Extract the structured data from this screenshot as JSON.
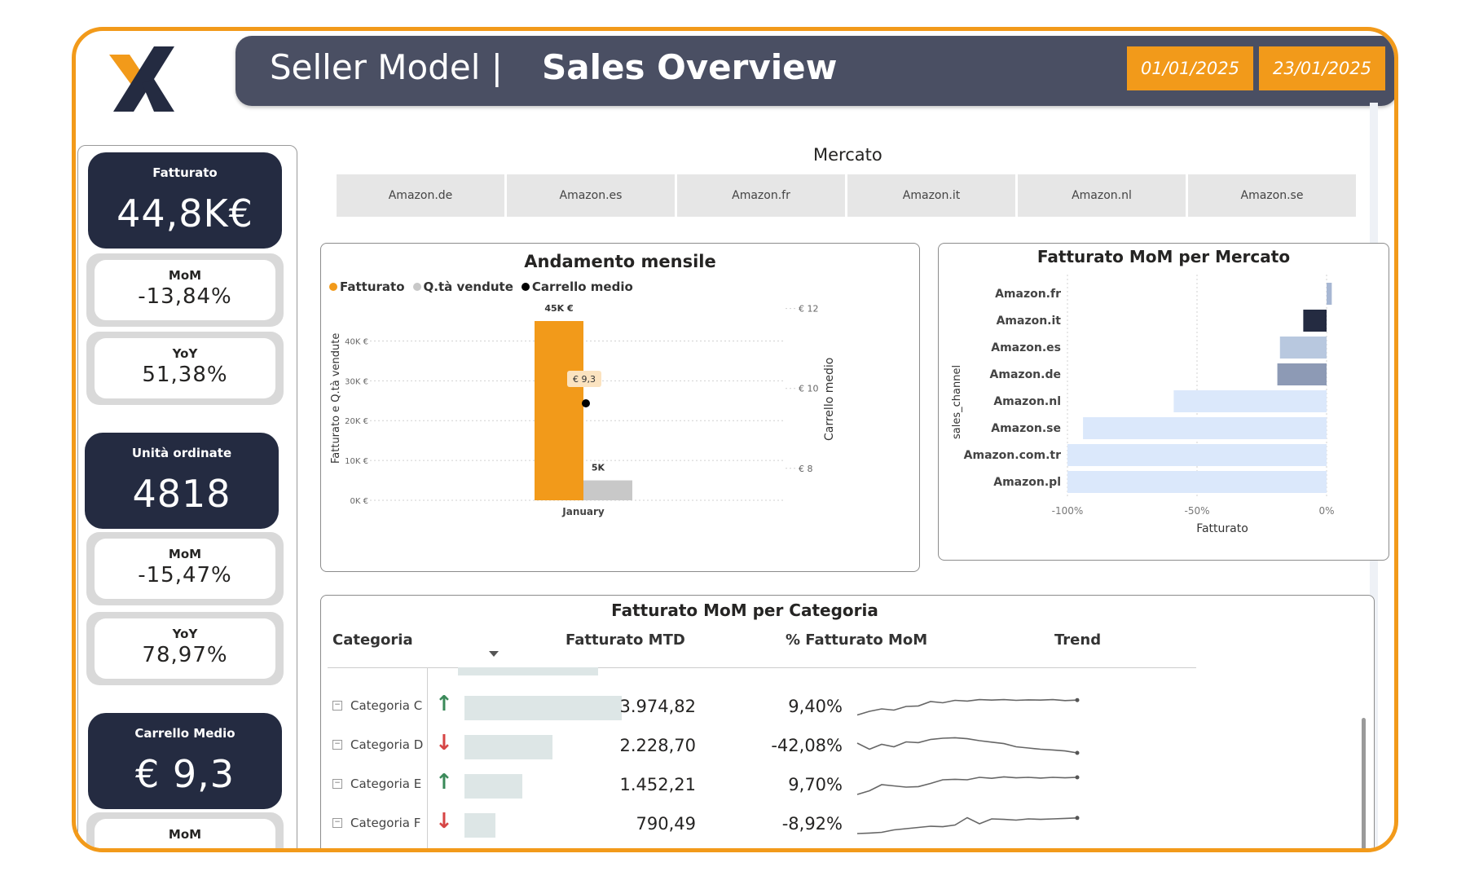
{
  "header": {
    "title_prefix": "Seller Model |",
    "title_main": "Sales Overview",
    "date_start": "01/01/2025",
    "date_end": "23/01/2025"
  },
  "colors": {
    "accent": "#F29A1A",
    "header_bg": "#4A4F63",
    "kpi_dark": "#242B41"
  },
  "kpis": [
    {
      "label": "Fatturato",
      "value": "44,8K€",
      "mom_label": "MoM",
      "mom": "-13,84%",
      "yoy_label": "YoY",
      "yoy": "51,38%"
    },
    {
      "label": "Unità ordinate",
      "value": "4818",
      "mom_label": "MoM",
      "mom": "-15,47%",
      "yoy_label": "YoY",
      "yoy": "78,97%"
    },
    {
      "label": "Carrello Medio",
      "value": "€ 9,3",
      "mom_label": "MoM"
    }
  ],
  "mercato": {
    "title": "Mercato",
    "options": [
      "Amazon.de",
      "Amazon.es",
      "Amazon.fr",
      "Amazon.it",
      "Amazon.nl",
      "Amazon.se"
    ]
  },
  "monthly_chart": {
    "title": "Andamento mensile",
    "legend": [
      "Fatturato",
      "Q.tà vendute",
      "Carrello medio"
    ],
    "legend_colors": [
      "#F29A1A",
      "#c8c8c8",
      "#000000"
    ]
  },
  "mom_chart": {
    "title": "Fatturato MoM per Mercato"
  },
  "table": {
    "title": "Fatturato MoM per Categoria",
    "headers": [
      "Categoria",
      "Fatturato MTD",
      "% Fatturato MoM",
      "Trend"
    ],
    "rows": [
      {
        "cat": "Categoria C",
        "dir": "up",
        "mtd": "3.974,82",
        "mom": "9,40%",
        "bar": 0.41,
        "trend": [
          0.25,
          0.4,
          0.5,
          0.45,
          0.6,
          0.62,
          0.8,
          0.75,
          0.85,
          0.82,
          0.88,
          0.86,
          0.88,
          0.85,
          0.87,
          0.86,
          0.88,
          0.84,
          0.86
        ]
      },
      {
        "cat": "Categoria D",
        "dir": "down",
        "mtd": "2.228,70",
        "mom": "-42,08%",
        "bar": 0.23,
        "trend": [
          0.7,
          0.45,
          0.65,
          0.55,
          0.75,
          0.72,
          0.85,
          0.9,
          0.92,
          0.88,
          0.8,
          0.74,
          0.68,
          0.55,
          0.5,
          0.45,
          0.42,
          0.38,
          0.3
        ]
      },
      {
        "cat": "Categoria E",
        "dir": "up",
        "mtd": "1.452,21",
        "mom": "9,70%",
        "bar": 0.15,
        "trend": [
          0.2,
          0.35,
          0.6,
          0.55,
          0.5,
          0.52,
          0.65,
          0.8,
          0.82,
          0.8,
          0.9,
          0.86,
          0.92,
          0.88,
          0.9,
          0.87,
          0.9,
          0.88,
          0.9
        ]
      },
      {
        "cat": "Categoria F",
        "dir": "down",
        "mtd": "790,49",
        "mom": "-8,92%",
        "bar": 0.08,
        "trend": [
          0.2,
          0.22,
          0.25,
          0.35,
          0.4,
          0.45,
          0.5,
          0.48,
          0.55,
          0.85,
          0.6,
          0.8,
          0.78,
          0.75,
          0.8,
          0.78,
          0.8,
          0.82,
          0.84
        ]
      }
    ]
  },
  "chart_data": [
    {
      "type": "bar",
      "title": "Andamento mensile",
      "categories": [
        "January"
      ],
      "series": [
        {
          "name": "Fatturato",
          "values": [
            45000
          ],
          "label": "45K €"
        },
        {
          "name": "Q.tà vendute",
          "values": [
            5000
          ],
          "label": "5K"
        },
        {
          "name": "Carrello medio",
          "values": [
            9.3
          ],
          "label": "€ 9,3",
          "axis": "right"
        }
      ],
      "ylabel": "Fatturato e Q.tà vendute",
      "ylabel_right": "Carrello medio",
      "y_ticks": [
        "0K €",
        "10K €",
        "20K €",
        "30K €",
        "40K €"
      ],
      "ylim": [
        0,
        45000
      ],
      "y2_ticks": [
        "€ 8",
        "€ 10",
        "€ 12"
      ],
      "y2lim": [
        7.2,
        12.4
      ],
      "grid": true,
      "legend": "top-left"
    },
    {
      "type": "bar",
      "title": "Fatturato MoM per Mercato",
      "orientation": "horizontal",
      "categories": [
        "Amazon.fr",
        "Amazon.it",
        "Amazon.es",
        "Amazon.de",
        "Amazon.nl",
        "Amazon.se",
        "Amazon.com.tr",
        "Amazon.pl"
      ],
      "values": [
        0.02,
        -0.09,
        -0.18,
        -0.19,
        -0.59,
        -0.94,
        -1.0,
        -1.0
      ],
      "colors": [
        "#a7b7d3",
        "#242B41",
        "#b8c8df",
        "#8d9ab5",
        "#dbe8fb",
        "#dbe8fb",
        "#dbe8fb",
        "#dbe8fb"
      ],
      "xlabel": "Fatturato",
      "ylabel": "sales_channel",
      "x_ticks": [
        "-100%",
        "-50%",
        "0%"
      ],
      "xlim": [
        -1.0,
        0.0
      ],
      "grid": true
    }
  ]
}
